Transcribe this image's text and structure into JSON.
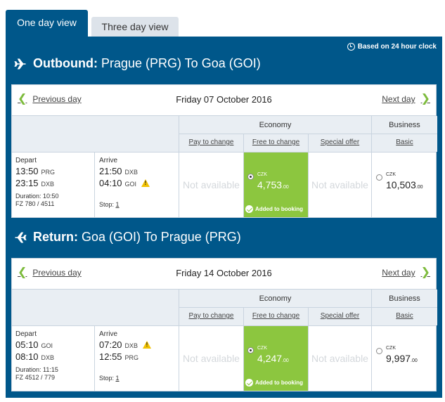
{
  "tabs": [
    {
      "label": "One day view",
      "active": true
    },
    {
      "label": "Three day view",
      "active": false
    }
  ],
  "clock_note": "Based on 24 hour clock",
  "column_headers": {
    "economy": "Economy",
    "business": "Business",
    "economy_fares": [
      "Pay to change",
      "Free to change",
      "Special offer"
    ],
    "business_fares": [
      "Basic"
    ]
  },
  "outbound": {
    "title_bold": "Outbound:",
    "title_rest": " Prague (PRG) To Goa (GOI)",
    "prev_label": "Previous day",
    "next_label": "Next day",
    "date": "Friday 07 October 2016",
    "depart_label": "Depart",
    "arrive_label": "Arrive",
    "depart_times": [
      {
        "time": "13:50",
        "code": "PRG"
      },
      {
        "time": "23:15",
        "code": "DXB"
      }
    ],
    "arrive_times": [
      {
        "time": "21:50",
        "code": "DXB"
      },
      {
        "time": "04:10",
        "code": "GOI"
      }
    ],
    "duration": "Duration: 10:50",
    "flight_numbers": "FZ 780 / 4511",
    "stop_label": "Stop:",
    "stops": "1",
    "pay_to_change": "Not available",
    "free_currency": "CZK",
    "free_price_main": "4,753",
    "free_price_dec": ".00",
    "added_label": "Added to booking",
    "special_offer": "Not available",
    "business_currency": "CZK",
    "business_price_main": "10,503",
    "business_price_dec": ".00"
  },
  "return": {
    "title_bold": "Return:",
    "title_rest": " Goa (GOI) To Prague (PRG)",
    "prev_label": "Previous day",
    "next_label": "Next day",
    "date": "Friday 14 October 2016",
    "depart_label": "Depart",
    "arrive_label": "Arrive",
    "depart_times": [
      {
        "time": "05:10",
        "code": "GOI"
      },
      {
        "time": "08:10",
        "code": "DXB"
      }
    ],
    "arrive_times": [
      {
        "time": "07:20",
        "code": "DXB"
      },
      {
        "time": "12:55",
        "code": "PRG"
      }
    ],
    "duration": "Duration: 11:15",
    "flight_numbers": "FZ 4512 / 779",
    "stop_label": "Stop:",
    "stops": "1",
    "pay_to_change": "Not available",
    "free_currency": "CZK",
    "free_price_main": "4,247",
    "free_price_dec": ".00",
    "added_label": "Added to booking",
    "special_offer": "Not available",
    "business_currency": "CZK",
    "business_price_main": "9,997",
    "business_price_dec": ".00"
  },
  "colors": {
    "brand_blue": "#00578a",
    "selected_green": "#8cc63f",
    "chevron_green": "#7dbb3c",
    "warning_yellow": "#f2c200"
  }
}
